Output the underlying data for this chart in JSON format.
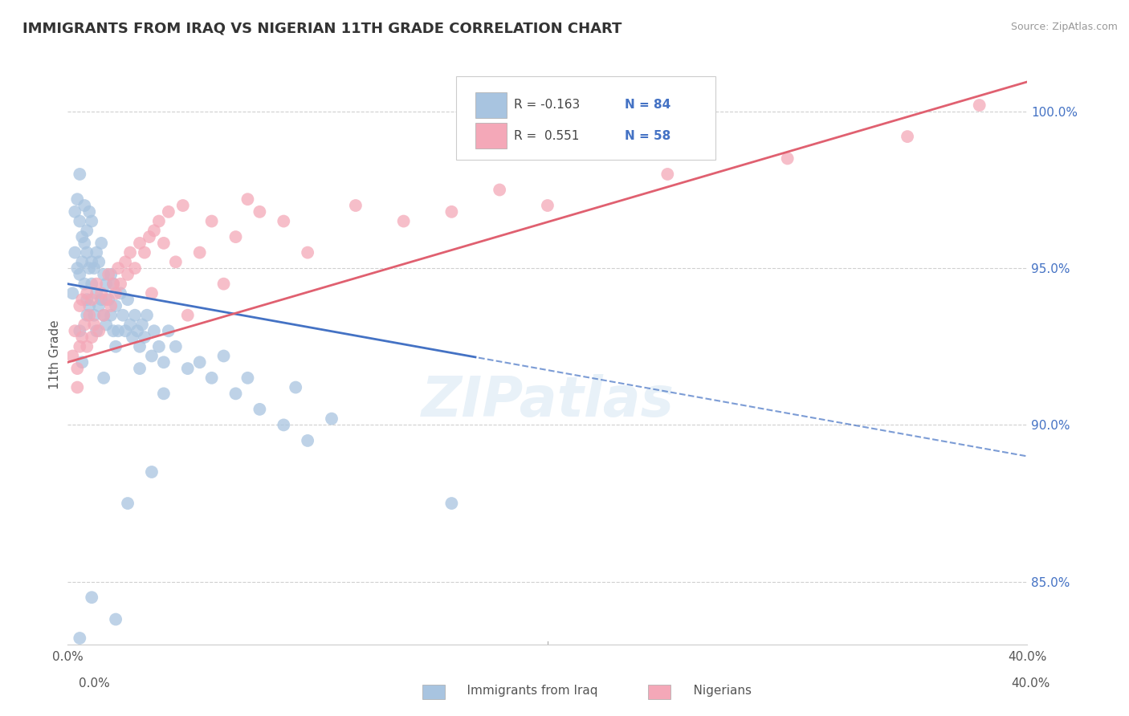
{
  "title": "IMMIGRANTS FROM IRAQ VS NIGERIAN 11TH GRADE CORRELATION CHART",
  "source": "Source: ZipAtlas.com",
  "ylabel_label": "11th Grade",
  "xlim": [
    0.0,
    40.0
  ],
  "ylim": [
    83.0,
    101.5
  ],
  "legend_iraq_r": "-0.163",
  "legend_iraq_n": "84",
  "legend_nigeria_r": "0.551",
  "legend_nigeria_n": "58",
  "color_iraq": "#a8c4e0",
  "color_nigeria": "#f4a8b8",
  "color_iraq_line": "#4472c4",
  "color_nigeria_line": "#e06070",
  "watermark": "ZIPatlas",
  "iraq_scatter": [
    [
      0.2,
      94.2
    ],
    [
      0.3,
      95.5
    ],
    [
      0.3,
      96.8
    ],
    [
      0.4,
      95.0
    ],
    [
      0.4,
      97.2
    ],
    [
      0.5,
      94.8
    ],
    [
      0.5,
      96.5
    ],
    [
      0.5,
      98.0
    ],
    [
      0.6,
      95.2
    ],
    [
      0.6,
      96.0
    ],
    [
      0.7,
      94.5
    ],
    [
      0.7,
      95.8
    ],
    [
      0.7,
      97.0
    ],
    [
      0.8,
      94.0
    ],
    [
      0.8,
      95.5
    ],
    [
      0.8,
      96.2
    ],
    [
      0.9,
      93.8
    ],
    [
      0.9,
      95.0
    ],
    [
      0.9,
      96.8
    ],
    [
      1.0,
      94.5
    ],
    [
      1.0,
      95.2
    ],
    [
      1.0,
      96.5
    ],
    [
      1.1,
      93.5
    ],
    [
      1.1,
      95.0
    ],
    [
      1.2,
      94.2
    ],
    [
      1.2,
      95.5
    ],
    [
      1.3,
      93.8
    ],
    [
      1.3,
      95.2
    ],
    [
      1.4,
      94.0
    ],
    [
      1.4,
      95.8
    ],
    [
      1.5,
      93.5
    ],
    [
      1.5,
      94.8
    ],
    [
      1.6,
      93.2
    ],
    [
      1.6,
      94.5
    ],
    [
      1.7,
      94.0
    ],
    [
      1.8,
      93.5
    ],
    [
      1.8,
      94.8
    ],
    [
      1.9,
      93.0
    ],
    [
      1.9,
      94.5
    ],
    [
      2.0,
      93.8
    ],
    [
      2.1,
      93.0
    ],
    [
      2.2,
      94.2
    ],
    [
      2.3,
      93.5
    ],
    [
      2.4,
      93.0
    ],
    [
      2.5,
      94.0
    ],
    [
      2.6,
      93.2
    ],
    [
      2.7,
      92.8
    ],
    [
      2.8,
      93.5
    ],
    [
      2.9,
      93.0
    ],
    [
      3.0,
      92.5
    ],
    [
      3.1,
      93.2
    ],
    [
      3.2,
      92.8
    ],
    [
      3.3,
      93.5
    ],
    [
      3.5,
      92.2
    ],
    [
      3.6,
      93.0
    ],
    [
      3.8,
      92.5
    ],
    [
      4.0,
      92.0
    ],
    [
      4.2,
      93.0
    ],
    [
      4.5,
      92.5
    ],
    [
      5.0,
      91.8
    ],
    [
      5.5,
      92.0
    ],
    [
      6.0,
      91.5
    ],
    [
      6.5,
      92.2
    ],
    [
      7.0,
      91.0
    ],
    [
      7.5,
      91.5
    ],
    [
      8.0,
      90.5
    ],
    [
      9.0,
      90.0
    ],
    [
      9.5,
      91.2
    ],
    [
      10.0,
      89.5
    ],
    [
      11.0,
      90.2
    ],
    [
      0.5,
      93.0
    ],
    [
      0.8,
      93.5
    ],
    [
      1.2,
      93.0
    ],
    [
      2.0,
      92.5
    ],
    [
      3.0,
      91.8
    ],
    [
      4.0,
      91.0
    ],
    [
      0.6,
      92.0
    ],
    [
      1.5,
      91.5
    ],
    [
      2.5,
      87.5
    ],
    [
      3.5,
      88.5
    ],
    [
      1.0,
      84.5
    ],
    [
      2.0,
      83.8
    ],
    [
      0.5,
      83.2
    ],
    [
      16.0,
      87.5
    ]
  ],
  "nigeria_scatter": [
    [
      0.2,
      92.2
    ],
    [
      0.3,
      93.0
    ],
    [
      0.4,
      91.8
    ],
    [
      0.5,
      92.5
    ],
    [
      0.5,
      93.8
    ],
    [
      0.6,
      92.8
    ],
    [
      0.6,
      94.0
    ],
    [
      0.7,
      93.2
    ],
    [
      0.8,
      92.5
    ],
    [
      0.8,
      94.2
    ],
    [
      0.9,
      93.5
    ],
    [
      1.0,
      92.8
    ],
    [
      1.0,
      94.0
    ],
    [
      1.1,
      93.2
    ],
    [
      1.2,
      94.5
    ],
    [
      1.3,
      93.0
    ],
    [
      1.4,
      94.2
    ],
    [
      1.5,
      93.5
    ],
    [
      1.6,
      94.0
    ],
    [
      1.7,
      94.8
    ],
    [
      1.8,
      93.8
    ],
    [
      1.9,
      94.5
    ],
    [
      2.0,
      94.2
    ],
    [
      2.1,
      95.0
    ],
    [
      2.2,
      94.5
    ],
    [
      2.4,
      95.2
    ],
    [
      2.5,
      94.8
    ],
    [
      2.6,
      95.5
    ],
    [
      2.8,
      95.0
    ],
    [
      3.0,
      95.8
    ],
    [
      3.2,
      95.5
    ],
    [
      3.4,
      96.0
    ],
    [
      3.5,
      94.2
    ],
    [
      3.6,
      96.2
    ],
    [
      3.8,
      96.5
    ],
    [
      4.0,
      95.8
    ],
    [
      4.2,
      96.8
    ],
    [
      4.5,
      95.2
    ],
    [
      4.8,
      97.0
    ],
    [
      5.0,
      93.5
    ],
    [
      5.5,
      95.5
    ],
    [
      6.0,
      96.5
    ],
    [
      6.5,
      94.5
    ],
    [
      7.0,
      96.0
    ],
    [
      7.5,
      97.2
    ],
    [
      8.0,
      96.8
    ],
    [
      9.0,
      96.5
    ],
    [
      10.0,
      95.5
    ],
    [
      12.0,
      97.0
    ],
    [
      14.0,
      96.5
    ],
    [
      16.0,
      96.8
    ],
    [
      18.0,
      97.5
    ],
    [
      20.0,
      97.0
    ],
    [
      25.0,
      98.0
    ],
    [
      30.0,
      98.5
    ],
    [
      35.0,
      99.2
    ],
    [
      38.0,
      100.2
    ],
    [
      0.4,
      91.2
    ]
  ]
}
